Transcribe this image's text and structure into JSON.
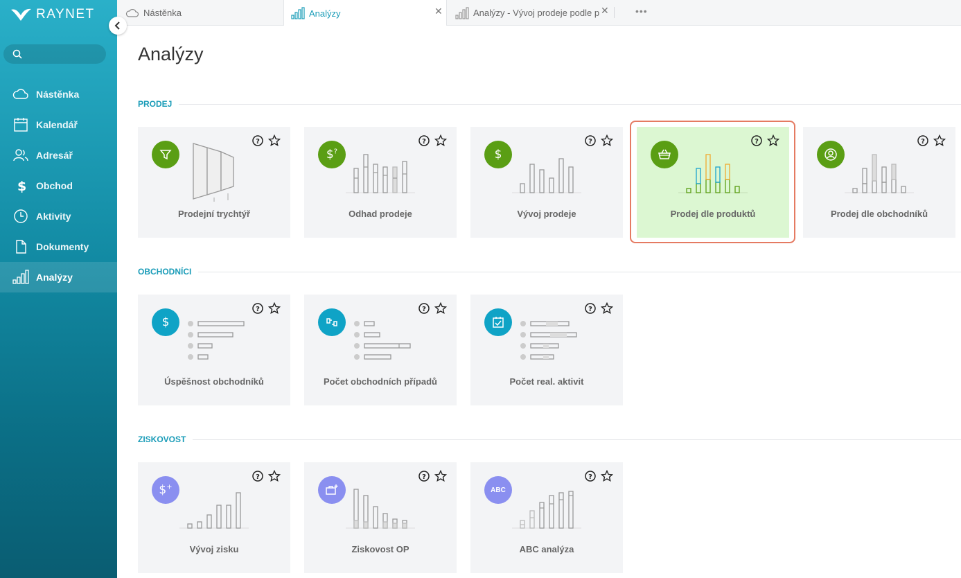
{
  "brand": {
    "name": "RAYNET"
  },
  "search": {
    "placeholder": ""
  },
  "sidebar": {
    "items": [
      {
        "label": "Nástěnka",
        "icon": "cloud-icon"
      },
      {
        "label": "Kalendář",
        "icon": "calendar-icon"
      },
      {
        "label": "Adresář",
        "icon": "people-icon"
      },
      {
        "label": "Obchod",
        "icon": "dollar-icon"
      },
      {
        "label": "Aktivity",
        "icon": "clock-icon"
      },
      {
        "label": "Dokumenty",
        "icon": "document-icon"
      },
      {
        "label": "Analýzy",
        "icon": "bar-chart-icon",
        "active": true
      }
    ]
  },
  "tabs": [
    {
      "label": "Nástěnka",
      "icon": "cloud-icon"
    },
    {
      "label": "Analýzy",
      "icon": "bar-chart-icon",
      "active": true
    },
    {
      "label": "Analýzy - Vývoj prodeje podle p",
      "icon": "bar-chart-icon"
    }
  ],
  "page": {
    "title": "Analýzy"
  },
  "sections": [
    {
      "title": "PRODEJ",
      "cards": [
        {
          "label": "Prodejní trychtýř",
          "icon": "funnel-icon",
          "color": "#5a9e14"
        },
        {
          "label": "Odhad prodeje",
          "icon": "dollar-question-icon",
          "color": "#5a9e14"
        },
        {
          "label": "Vývoj prodeje",
          "icon": "dollar-icon",
          "color": "#5a9e14"
        },
        {
          "label": "Prodej dle produktů",
          "icon": "basket-icon",
          "color": "#5a9e14",
          "highlighted": true
        },
        {
          "label": "Prodej dle obchodníků",
          "icon": "user-circle-icon",
          "color": "#5a9e14"
        }
      ]
    },
    {
      "title": "OBCHODNÍCI",
      "cards": [
        {
          "label": "Úspěšnost obchodníků",
          "icon": "dollar-icon",
          "color": "#0fa3c6"
        },
        {
          "label": "Počet obchodních případů",
          "icon": "handshake-icon",
          "color": "#0fa3c6"
        },
        {
          "label": "Počet real. aktivit",
          "icon": "calendar-check-icon",
          "color": "#0fa3c6"
        }
      ]
    },
    {
      "title": "ZISKOVOST",
      "cards": [
        {
          "label": "Vývoj zisku",
          "icon": "dollar-plus-icon",
          "color": "#8a8ff0"
        },
        {
          "label": "Ziskovost OP",
          "icon": "briefcase-plus-icon",
          "color": "#8a8ff0"
        },
        {
          "label": "ABC analýza",
          "icon": "abc-icon",
          "icon_text": "ABC",
          "color": "#8a8ff0"
        }
      ]
    }
  ]
}
